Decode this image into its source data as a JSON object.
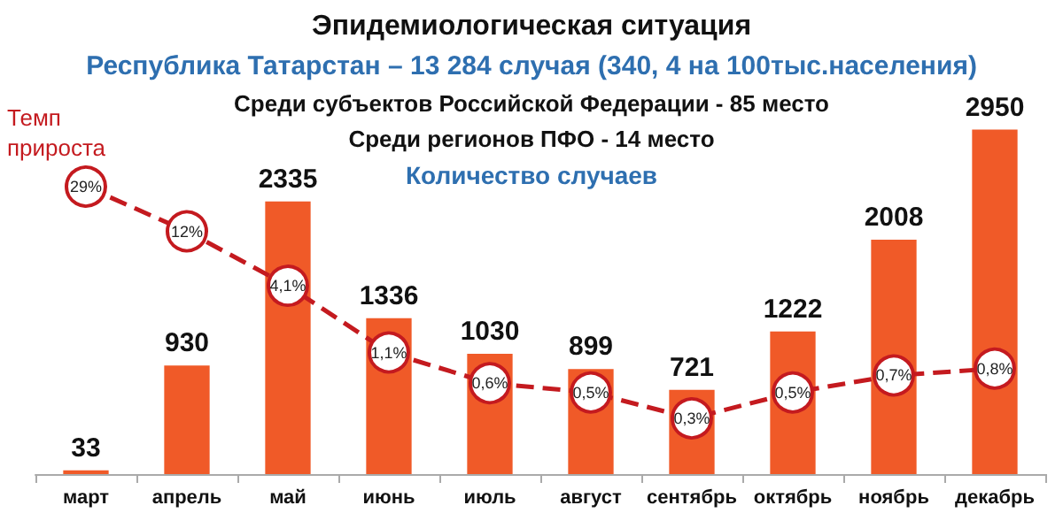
{
  "chart_data": {
    "type": "bar",
    "title": "Эпидемиологическая ситуация",
    "subtitle": "Республика Татарстан – 13 284 случая (340, 4 на 100тыс.населения)",
    "annotations": [
      "Среди субъектов Российской Федерации - 85 место",
      "Среди регионов ПФО - 14 место",
      "Количество случаев"
    ],
    "categories": [
      "март",
      "апрель",
      "май",
      "июнь",
      "июль",
      "август",
      "сентябрь",
      "октябрь",
      "ноябрь",
      "декабрь"
    ],
    "series": [
      {
        "color": "#f05a28",
        "values": [
          33,
          930,
          2335,
          1336,
          1030,
          899,
          721,
          1222,
          2008,
          2950
        ],
        "data_labels": true
      },
      {
        "name": "Темп прироста",
        "type": "line",
        "axis": "y2",
        "color": "#c41a1f",
        "marker": "circle",
        "line_style": "dashed",
        "values": [
          29,
          12,
          4.1,
          1.1,
          0.6,
          0.5,
          0.3,
          0.5,
          0.7,
          0.8
        ],
        "value_labels": [
          "29%",
          "12%",
          "4,1%",
          "1,1%",
          "0,6%",
          "0,5%",
          "0,3%",
          "0,5%",
          "0,7%",
          "0,8%"
        ]
      }
    ],
    "log": "y2",
    "tick_labels": "x",
    "grid": false,
    "legend": false
  }
}
